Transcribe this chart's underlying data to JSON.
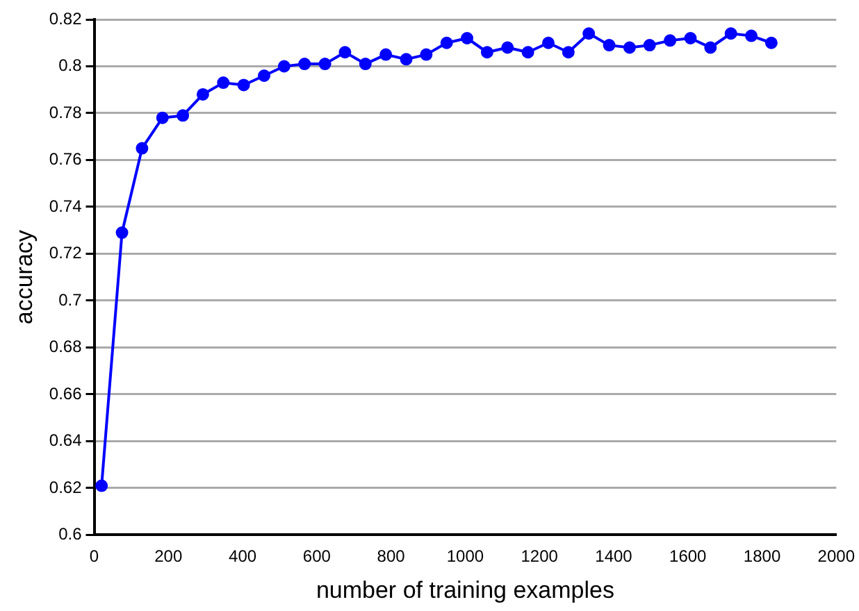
{
  "chart_data": {
    "type": "line",
    "xlabel": "number of training examples",
    "ylabel": "accuracy",
    "x": [
      20,
      75,
      129,
      184,
      239,
      293,
      348,
      403,
      458,
      512,
      567,
      622,
      676,
      731,
      786,
      841,
      895,
      950,
      1005,
      1059,
      1114,
      1169,
      1224,
      1278,
      1333,
      1388,
      1443,
      1497,
      1552,
      1607,
      1661,
      1716,
      1771,
      1825
    ],
    "series": [
      {
        "color": "#0000ff",
        "values": [
          0.621,
          0.729,
          0.765,
          0.778,
          0.779,
          0.788,
          0.793,
          0.792,
          0.796,
          0.8,
          0.801,
          0.801,
          0.806,
          0.801,
          0.805,
          0.803,
          0.805,
          0.81,
          0.812,
          0.806,
          0.808,
          0.806,
          0.81,
          0.806,
          0.814,
          0.809,
          0.808,
          0.809,
          0.811,
          0.812,
          0.808,
          0.814,
          0.813,
          0.81
        ]
      }
    ],
    "xlim": [
      0,
      2000
    ],
    "xticks": [
      0,
      200,
      400,
      600,
      800,
      1000,
      1200,
      1400,
      1600,
      1800,
      2000
    ],
    "ylim": [
      0.6,
      0.82
    ],
    "yticks": [
      0.6,
      0.62,
      0.64,
      0.66,
      0.68,
      0.7,
      0.72,
      0.74,
      0.76,
      0.78,
      0.8,
      0.82
    ],
    "grid": "y",
    "legend": false,
    "marker": "circle",
    "line_style": "solid"
  }
}
